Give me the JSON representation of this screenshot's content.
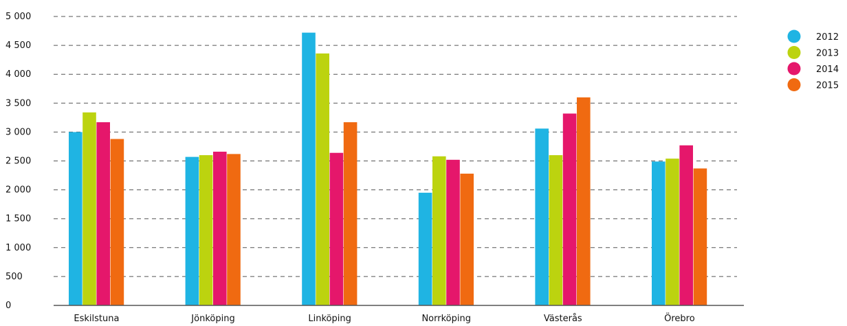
{
  "chart_data": {
    "type": "bar",
    "categories": [
      "Eskilstuna",
      "Jönköping",
      "Linköping",
      "Norrköping",
      "Västerås",
      "Örebro"
    ],
    "series": [
      {
        "name": "2012",
        "color": "#1fb4e3",
        "values": [
          3000,
          2570,
          4720,
          1950,
          3060,
          2490
        ]
      },
      {
        "name": "2013",
        "color": "#bcd30f",
        "values": [
          3340,
          2600,
          4360,
          2580,
          2600,
          2540
        ]
      },
      {
        "name": "2014",
        "color": "#e5176b",
        "values": [
          3170,
          2660,
          2640,
          2520,
          3320,
          2770
        ]
      },
      {
        "name": "2015",
        "color": "#f06a11",
        "values": [
          2880,
          2620,
          3170,
          2280,
          3600,
          2370
        ]
      }
    ],
    "ylim": [
      0,
      5000
    ],
    "yticks": [
      0,
      500,
      1000,
      1500,
      2000,
      2500,
      3000,
      3500,
      4000,
      4500,
      5000
    ],
    "ytick_labels": [
      "0",
      "500",
      "1 000",
      "1 500",
      "2 000",
      "2 500",
      "3 000",
      "3 500",
      "4 000",
      "4 500",
      "5 000"
    ],
    "grid": "horizontal dashed",
    "legend_position": "top-right"
  }
}
